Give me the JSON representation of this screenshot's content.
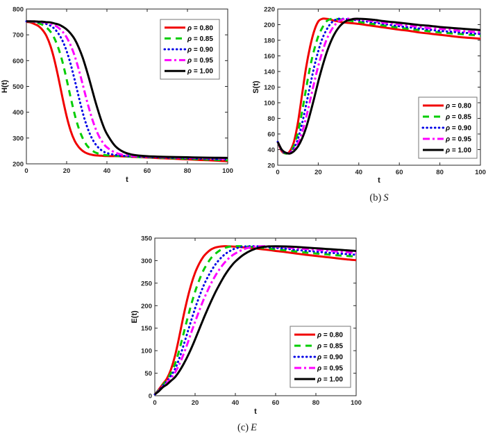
{
  "figure": {
    "type": "multi-panel-line-figure",
    "panel_count": 3
  },
  "chart_data": [
    {
      "id": "H",
      "type": "line",
      "title": "",
      "xlabel": "t",
      "ylabel": "H(t)",
      "xlim": [
        0,
        100
      ],
      "ylim": [
        200,
        800
      ],
      "xticks": [
        0,
        20,
        40,
        60,
        80,
        100
      ],
      "yticks": [
        200,
        300,
        400,
        500,
        600,
        700,
        800
      ],
      "grid": false,
      "legend_position": "northeast",
      "x": [
        0,
        2,
        4,
        6,
        8,
        10,
        12,
        14,
        16,
        18,
        20,
        22,
        24,
        26,
        28,
        30,
        32,
        34,
        36,
        38,
        40,
        44,
        48,
        52,
        56,
        60,
        65,
        70,
        75,
        80,
        85,
        90,
        95,
        100
      ],
      "series": [
        {
          "name": "rho-0.80",
          "label": "ρ = 0.80",
          "rho": "0.80",
          "color": "#f10000",
          "style": "solid",
          "values": [
            750,
            748,
            742,
            734,
            719,
            695,
            656,
            600,
            530,
            454,
            384,
            328,
            289,
            265,
            250,
            241,
            236,
            233,
            232,
            231,
            230,
            230,
            229,
            227.5,
            226,
            224.5,
            222.5,
            221,
            219,
            217.5,
            215.5,
            214,
            212,
            210
          ]
        },
        {
          "name": "rho-0.85",
          "label": "ρ = 0.85",
          "rho": "0.85",
          "color": "#00cd00",
          "style": "dashed",
          "values": [
            752,
            751,
            749,
            745,
            739,
            728,
            712,
            685,
            646,
            593,
            527,
            457,
            391,
            338,
            299,
            272,
            256,
            245,
            239,
            235,
            233,
            231,
            229.5,
            228,
            226.5,
            225.5,
            224,
            222.5,
            221,
            219.5,
            218,
            216.5,
            215,
            213.5
          ]
        },
        {
          "name": "rho-0.90",
          "label": "ρ = 0.90",
          "rho": "0.90",
          "color": "#0000e6",
          "style": "dotted",
          "values": [
            752,
            752,
            751,
            749,
            747,
            742,
            735,
            723,
            704,
            676,
            637,
            586,
            525,
            460,
            398,
            347,
            308,
            280,
            261,
            249,
            242,
            234.5,
            231,
            229,
            227.5,
            226.5,
            225,
            224,
            223,
            221.5,
            220.5,
            219,
            218,
            217
          ]
        },
        {
          "name": "rho-0.95",
          "label": "ρ = 0.95",
          "rho": "0.95",
          "color": "#ff00ff",
          "style": "dashdot",
          "values": [
            752,
            752,
            751,
            751,
            749,
            747,
            743,
            737,
            727,
            712,
            690,
            659,
            618,
            566,
            507,
            446,
            391,
            344,
            308,
            282,
            264,
            244,
            235,
            231,
            229,
            228,
            226.5,
            225.5,
            224.5,
            223.5,
            223,
            222,
            221,
            220
          ]
        },
        {
          "name": "rho-1.00",
          "label": "ρ = 1.00",
          "rho": "1.00",
          "color": "#000000",
          "style": "solid",
          "values": [
            752,
            752,
            752,
            751,
            751,
            749,
            748,
            744,
            740,
            732,
            721,
            705,
            683,
            651,
            611,
            561,
            506,
            449,
            397,
            351,
            316,
            270,
            247,
            236.5,
            232,
            229.5,
            228,
            227,
            226,
            225.5,
            224.5,
            224,
            223.5,
            223
          ]
        }
      ]
    },
    {
      "id": "S",
      "type": "line",
      "title": "",
      "caption": {
        "prefix": "(b)",
        "symbol": "S"
      },
      "xlabel": "t",
      "ylabel": "S(t)",
      "xlim": [
        0,
        100
      ],
      "ylim": [
        20,
        220
      ],
      "xticks": [
        0,
        20,
        40,
        60,
        80,
        100
      ],
      "yticks": [
        20,
        40,
        60,
        80,
        100,
        120,
        140,
        160,
        180,
        200,
        220
      ],
      "grid": false,
      "legend_position": "east",
      "x": [
        0,
        2,
        4,
        6,
        8,
        10,
        12,
        14,
        16,
        18,
        20,
        22,
        24,
        26,
        28,
        30,
        32,
        34,
        36,
        38,
        40,
        44,
        48,
        52,
        56,
        60,
        65,
        70,
        75,
        80,
        85,
        90,
        95,
        100
      ],
      "series": [
        {
          "name": "rho-0.80",
          "label": "ρ = 0.80",
          "rho": "0.80",
          "color": "#f10000",
          "style": "solid",
          "values": [
            50,
            38,
            35,
            38,
            50,
            75,
            110,
            145,
            172,
            192,
            204,
            207.5,
            207.5,
            206.5,
            205,
            204,
            203,
            202.5,
            202,
            201.5,
            201,
            199.5,
            198,
            196.5,
            195,
            193.5,
            192,
            190,
            188.5,
            187,
            185.5,
            184,
            183,
            182
          ]
        },
        {
          "name": "rho-0.85",
          "label": "ρ = 0.85",
          "rho": "0.85",
          "color": "#00cd00",
          "style": "dashed",
          "values": [
            50,
            39,
            35,
            37,
            45,
            62,
            88,
            118,
            146,
            168,
            185,
            196,
            204,
            207,
            207.5,
            207,
            206.5,
            205.5,
            205,
            204,
            203.5,
            202,
            200.5,
            199,
            197.5,
            196,
            194.5,
            193,
            191.5,
            190,
            189,
            188,
            187,
            186
          ]
        },
        {
          "name": "rho-0.90",
          "label": "ρ = 0.90",
          "rho": "0.90",
          "color": "#0000e6",
          "style": "dotted",
          "values": [
            50,
            39,
            35.5,
            36,
            42,
            54,
            73,
            97,
            122,
            146,
            166,
            182,
            193,
            201,
            205.5,
            207.5,
            207.5,
            207,
            206.5,
            206,
            205.5,
            204,
            202.5,
            201,
            199.5,
            198,
            196.5,
            195,
            193.5,
            192,
            191,
            190,
            189,
            188
          ]
        },
        {
          "name": "rho-0.95",
          "label": "ρ = 0.95",
          "rho": "0.95",
          "color": "#ff00ff",
          "style": "dashdot",
          "values": [
            50,
            39.5,
            36,
            35.5,
            40,
            48,
            62,
            81,
            103,
            126,
            147,
            165,
            180,
            191,
            199,
            204,
            206.5,
            207.5,
            207.5,
            207,
            206.5,
            205.5,
            204,
            202.5,
            201.5,
            200,
            198.5,
            197,
            195.5,
            194.5,
            193.5,
            192,
            191,
            190
          ]
        },
        {
          "name": "rho-1.00",
          "label": "ρ = 1.00",
          "rho": "1.00",
          "color": "#000000",
          "style": "solid",
          "values": [
            50,
            40,
            36,
            35,
            38,
            44,
            54,
            68,
            86,
            106,
            127,
            146,
            163,
            177,
            188,
            196,
            201.5,
            205,
            206.5,
            207.5,
            207.5,
            207,
            206,
            204.5,
            203.5,
            202.5,
            201,
            199.5,
            198.5,
            197,
            196,
            195,
            194,
            193
          ]
        }
      ]
    },
    {
      "id": "E",
      "type": "line",
      "title": "",
      "caption": {
        "prefix": "(c)",
        "symbol": "E"
      },
      "xlabel": "t",
      "ylabel": "E(t)",
      "xlim": [
        0,
        100
      ],
      "ylim": [
        0,
        350
      ],
      "xticks": [
        0,
        20,
        40,
        60,
        80,
        100
      ],
      "yticks": [
        0,
        50,
        100,
        150,
        200,
        250,
        300,
        350
      ],
      "grid": false,
      "legend_position": "east",
      "x": [
        0,
        2,
        4,
        6,
        8,
        10,
        12,
        14,
        16,
        18,
        20,
        22,
        24,
        26,
        28,
        30,
        32,
        34,
        36,
        38,
        40,
        44,
        48,
        52,
        56,
        60,
        65,
        70,
        75,
        80,
        85,
        90,
        95,
        100
      ],
      "series": [
        {
          "name": "rho-0.80",
          "label": "ρ = 0.80",
          "rho": "0.80",
          "color": "#f10000",
          "style": "solid",
          "values": [
            3,
            14,
            26,
            38,
            58,
            88,
            128,
            172,
            212,
            246,
            273,
            293,
            308,
            318,
            325,
            329,
            331,
            332,
            332,
            331.5,
            331,
            329.5,
            328,
            326,
            324,
            321.5,
            319,
            316,
            313,
            310.5,
            308,
            305.5,
            303,
            301
          ]
        },
        {
          "name": "rho-0.85",
          "label": "ρ = 0.85",
          "rho": "0.85",
          "color": "#00cd00",
          "style": "dashed",
          "values": [
            3,
            13,
            24,
            35,
            50,
            70,
            99,
            133,
            168,
            201,
            231,
            256,
            277,
            293,
            306,
            315,
            322,
            327,
            330,
            331.5,
            332,
            332,
            330.5,
            329,
            327,
            325,
            323,
            320.5,
            318,
            316,
            314,
            312,
            310.5,
            309
          ]
        },
        {
          "name": "rho-0.90",
          "label": "ρ = 0.90",
          "rho": "0.90",
          "color": "#0000e6",
          "style": "dotted",
          "values": [
            3,
            12,
            22,
            31,
            44,
            59,
            81,
            108,
            137,
            166,
            194,
            219,
            242,
            261,
            277,
            291,
            302,
            311,
            318,
            323,
            327,
            331,
            332,
            331.5,
            330,
            328.5,
            326.5,
            324,
            322,
            320,
            318,
            316.5,
            314.5,
            313
          ]
        },
        {
          "name": "rho-0.95",
          "label": "ρ = 0.95",
          "rho": "0.95",
          "color": "#ff00ff",
          "style": "dashdot",
          "values": [
            3,
            11,
            21,
            28,
            39,
            51,
            68,
            89,
            113,
            139,
            164,
            188,
            211,
            231,
            250,
            266,
            280,
            292,
            302,
            310,
            316,
            325,
            330,
            332,
            332,
            331,
            329.5,
            327.5,
            326,
            324,
            322.5,
            320.5,
            319,
            317
          ]
        },
        {
          "name": "rho-1.00",
          "label": "ρ = 1.00",
          "rho": "1.00",
          "color": "#000000",
          "style": "solid",
          "values": [
            3,
            10,
            19,
            25,
            33,
            41,
            53,
            68,
            85,
            104,
            125,
            147,
            169,
            190,
            210,
            229,
            246,
            262,
            276,
            288,
            298,
            313,
            323,
            329,
            331.5,
            332,
            331.5,
            330.5,
            329,
            327.5,
            326,
            324.5,
            323,
            321.5
          ]
        }
      ]
    }
  ]
}
